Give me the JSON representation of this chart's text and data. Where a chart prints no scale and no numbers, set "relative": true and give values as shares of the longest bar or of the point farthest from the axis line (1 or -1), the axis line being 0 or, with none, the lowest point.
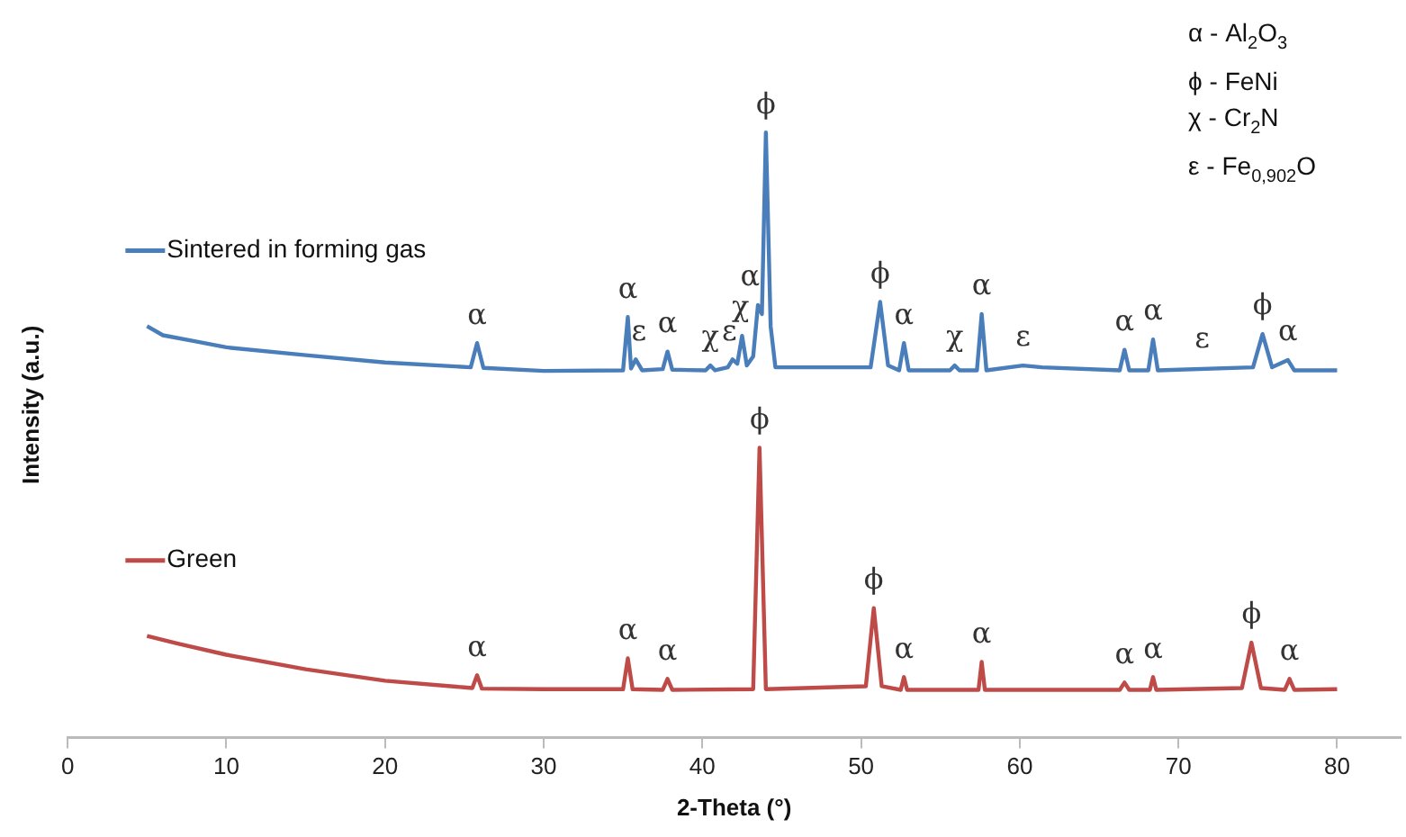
{
  "chart_data": {
    "type": "line",
    "relative": true,
    "xlabel": "2-Theta (°)",
    "ylabel": "Intensity (a.u.)",
    "xlim": [
      0,
      84
    ],
    "xticks": [
      0,
      10,
      20,
      30,
      40,
      50,
      60,
      70,
      80
    ],
    "grid": false,
    "legend": "left",
    "marker": "none",
    "line_style": "solid",
    "series": [
      {
        "name": "Sintered in forming gas",
        "color": "#4a7ebb",
        "x": [
          5,
          6,
          8,
          10,
          15,
          20,
          25.4,
          25.8,
          26.2,
          30,
          35.0,
          35.3,
          35.5,
          35.8,
          36.2,
          37.5,
          37.8,
          38.1,
          40.2,
          40.5,
          40.8,
          41.6,
          41.9,
          42.2,
          42.5,
          42.8,
          43.2,
          43.5,
          43.75,
          44.0,
          44.3,
          44.6,
          50.6,
          51.2,
          51.7,
          52.4,
          52.7,
          53.0,
          55.6,
          55.9,
          56.2,
          57.3,
          57.6,
          57.9,
          60.2,
          61.4,
          66.3,
          66.6,
          66.9,
          68.1,
          68.4,
          68.7,
          74.7,
          75.3,
          75.9,
          76.9,
          77.3,
          80
        ],
        "values": [
          0.68,
          0.665,
          0.655,
          0.645,
          0.632,
          0.62,
          0.612,
          0.652,
          0.611,
          0.606,
          0.607,
          0.695,
          0.61,
          0.625,
          0.607,
          0.609,
          0.638,
          0.608,
          0.607,
          0.615,
          0.607,
          0.612,
          0.625,
          0.618,
          0.664,
          0.615,
          0.63,
          0.715,
          0.7,
          1.0,
          0.68,
          0.612,
          0.612,
          0.72,
          0.615,
          0.607,
          0.652,
          0.607,
          0.607,
          0.615,
          0.607,
          0.607,
          0.7,
          0.607,
          0.615,
          0.612,
          0.607,
          0.641,
          0.607,
          0.607,
          0.658,
          0.607,
          0.612,
          0.667,
          0.612,
          0.624,
          0.607,
          0.607
        ]
      },
      {
        "name": "Green",
        "color": "#be4b48",
        "x": [
          5,
          7,
          10,
          15,
          20,
          25,
          25.5,
          25.8,
          26.1,
          30,
          35.0,
          35.3,
          35.6,
          37.5,
          37.8,
          38.1,
          43.2,
          43.6,
          44.0,
          50.3,
          50.8,
          51.3,
          52.5,
          52.7,
          52.9,
          57.4,
          57.6,
          57.8,
          66.3,
          66.6,
          66.9,
          68.2,
          68.4,
          68.6,
          74.0,
          74.6,
          75.2,
          76.7,
          77.0,
          77.3,
          80
        ],
        "values": [
          0.168,
          0.155,
          0.137,
          0.113,
          0.094,
          0.083,
          0.082,
          0.103,
          0.081,
          0.08,
          0.08,
          0.131,
          0.08,
          0.079,
          0.097,
          0.079,
          0.08,
          0.479,
          0.08,
          0.085,
          0.214,
          0.085,
          0.079,
          0.1,
          0.079,
          0.079,
          0.125,
          0.079,
          0.079,
          0.091,
          0.079,
          0.079,
          0.1,
          0.079,
          0.082,
          0.157,
          0.082,
          0.079,
          0.097,
          0.079,
          0.08
        ]
      }
    ],
    "annotations": [
      "α - Al$_{2}$O$_{3}$",
      "ϕ - FeNi",
      "χ - Cr$_{2}$N",
      "ε - Fe$_{0,902}$O",
      {
        "text": "α",
        "x": 25.8,
        "y": 0.652
      },
      {
        "text": "α",
        "x": 35.3,
        "y": 0.695
      },
      {
        "text": "ε",
        "x": 36.0,
        "y": 0.625
      },
      {
        "text": "α",
        "x": 37.8,
        "y": 0.638
      },
      {
        "text": "χ",
        "x": 40.5,
        "y": 0.615
      },
      {
        "text": "ε",
        "x": 41.7,
        "y": 0.625
      },
      {
        "text": "χ",
        "x": 42.4,
        "y": 0.664
      },
      {
        "text": "α",
        "x": 43.0,
        "y": 0.715
      },
      {
        "text": "ϕ",
        "x": 44.0,
        "y": 1.0
      },
      {
        "text": "ϕ",
        "x": 51.2,
        "y": 0.72
      },
      {
        "text": "α",
        "x": 52.7,
        "y": 0.652
      },
      {
        "text": "χ",
        "x": 55.9,
        "y": 0.615
      },
      {
        "text": "α",
        "x": 57.6,
        "y": 0.7
      },
      {
        "text": "ε",
        "x": 60.2,
        "y": 0.615
      },
      {
        "text": "α",
        "x": 66.6,
        "y": 0.641
      },
      {
        "text": "α",
        "x": 68.4,
        "y": 0.658
      },
      {
        "text": "ε",
        "x": 71.5,
        "y": 0.612
      },
      {
        "text": "ϕ",
        "x": 75.3,
        "y": 0.667
      },
      {
        "text": "α",
        "x": 76.9,
        "y": 0.624
      },
      {
        "text": "α",
        "x": 25.8,
        "y": 0.103
      },
      {
        "text": "α",
        "x": 35.3,
        "y": 0.131
      },
      {
        "text": "α",
        "x": 37.8,
        "y": 0.097
      },
      {
        "text": "ϕ",
        "x": 43.6,
        "y": 0.479
      },
      {
        "text": "ϕ",
        "x": 50.8,
        "y": 0.214
      },
      {
        "text": "α",
        "x": 52.7,
        "y": 0.1
      },
      {
        "text": "α",
        "x": 57.6,
        "y": 0.125
      },
      {
        "text": "α",
        "x": 66.6,
        "y": 0.091
      },
      {
        "text": "α",
        "x": 68.4,
        "y": 0.1
      },
      {
        "text": "ϕ",
        "x": 74.6,
        "y": 0.157
      },
      {
        "text": "α",
        "x": 77.0,
        "y": 0.097
      }
    ]
  }
}
